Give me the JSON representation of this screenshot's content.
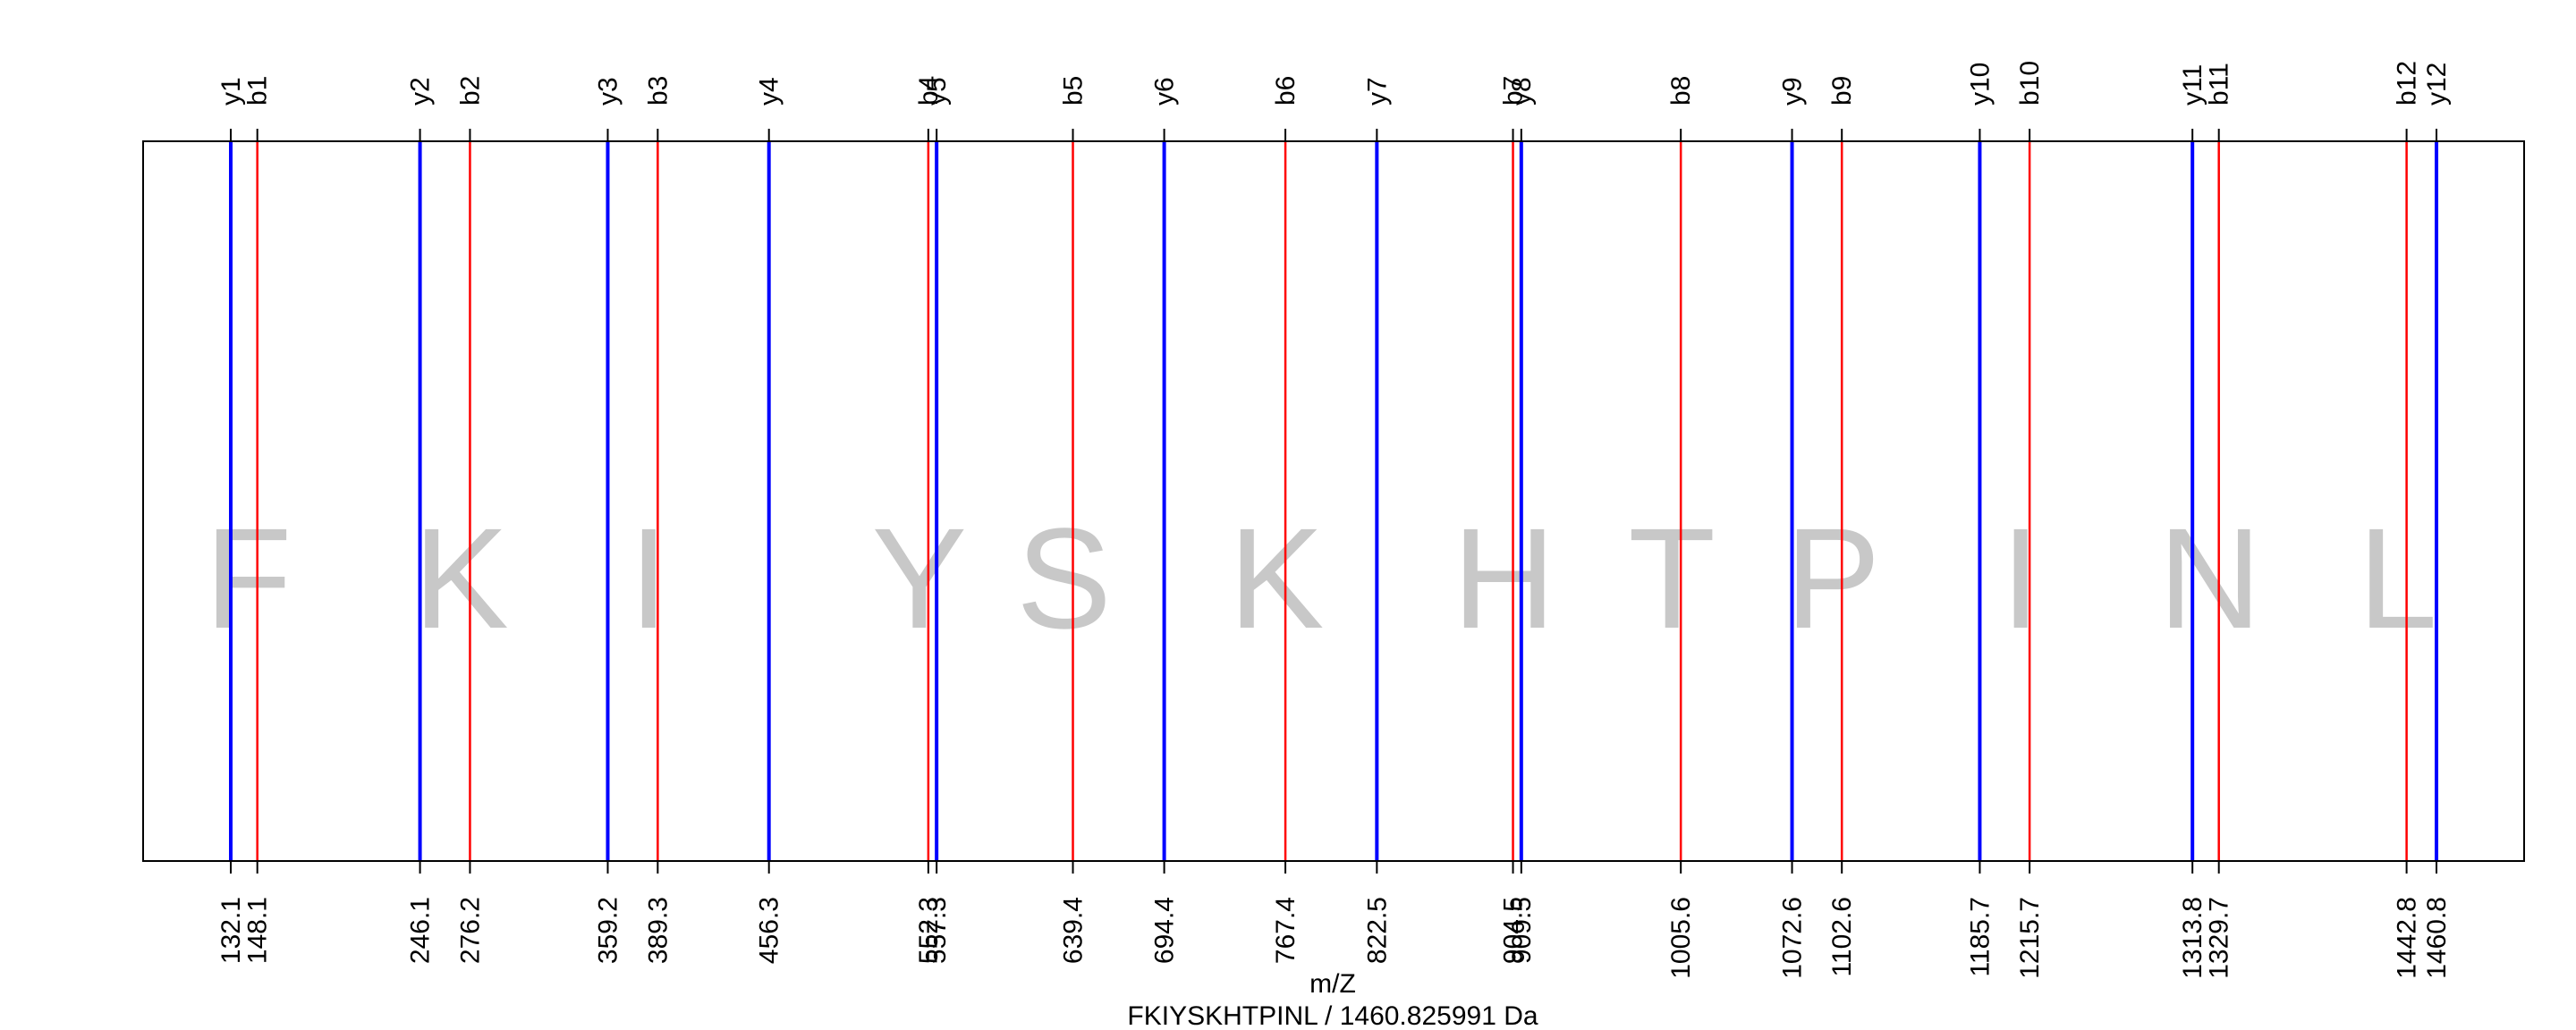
{
  "chart_data": {
    "type": "spectrum-annotation",
    "xlabel": "m/Z",
    "subtitle": "FKIYSKHTPINL / 1460.825991 Da",
    "sequence": [
      "F",
      "K",
      "I",
      "Y",
      "S",
      "K",
      "H",
      "T",
      "P",
      "I",
      "N",
      "L"
    ],
    "ions": [
      {
        "label": "y1",
        "mz": 132.1,
        "tick": "132.1",
        "series": "y"
      },
      {
        "label": "b1",
        "mz": 148.1,
        "tick": "148.1",
        "series": "b"
      },
      {
        "label": "y2",
        "mz": 246.1,
        "tick": "246.1",
        "series": "y"
      },
      {
        "label": "b2",
        "mz": 276.2,
        "tick": "276.2",
        "series": "b"
      },
      {
        "label": "y3",
        "mz": 359.2,
        "tick": "359.2",
        "series": "y"
      },
      {
        "label": "b3",
        "mz": 389.3,
        "tick": "389.3",
        "series": "b"
      },
      {
        "label": "y4",
        "mz": 456.3,
        "tick": "456.3",
        "series": "y"
      },
      {
        "label": "b4",
        "mz": 552.3,
        "tick": "552.3",
        "series": "b"
      },
      {
        "label": "y5",
        "mz": 557.3,
        "tick": "557.3",
        "series": "y"
      },
      {
        "label": "b5",
        "mz": 639.4,
        "tick": "639.4",
        "series": "b"
      },
      {
        "label": "y6",
        "mz": 694.4,
        "tick": "694.4",
        "series": "y"
      },
      {
        "label": "b6",
        "mz": 767.4,
        "tick": "767.4",
        "series": "b"
      },
      {
        "label": "y7",
        "mz": 822.5,
        "tick": "822.5",
        "series": "y"
      },
      {
        "label": "b7",
        "mz": 904.5,
        "tick": "904.5",
        "series": "b"
      },
      {
        "label": "y8",
        "mz": 909.5,
        "tick": "909.5",
        "series": "y"
      },
      {
        "label": "b8",
        "mz": 1005.6,
        "tick": "1005.6",
        "series": "b"
      },
      {
        "label": "y9",
        "mz": 1072.6,
        "tick": "1072.6",
        "series": "y"
      },
      {
        "label": "b9",
        "mz": 1102.6,
        "tick": "1102.6",
        "series": "b"
      },
      {
        "label": "y10",
        "mz": 1185.7,
        "tick": "1185.7",
        "series": "y"
      },
      {
        "label": "b10",
        "mz": 1215.7,
        "tick": "1215.7",
        "series": "b"
      },
      {
        "label": "y11",
        "mz": 1313.8,
        "tick": "1313.8",
        "series": "y"
      },
      {
        "label": "b11",
        "mz": 1329.7,
        "tick": "1329.7",
        "series": "b"
      },
      {
        "label": "b12",
        "mz": 1442.8,
        "tick": "1442.8",
        "series": "b"
      },
      {
        "label": "y12",
        "mz": 1460.8,
        "tick": "1460.8",
        "series": "y"
      }
    ],
    "xlim": [
      79.3,
      1513.6
    ],
    "colors": {
      "b": "#ff0000",
      "y": "#0000ff",
      "letters": "#c8c8c8",
      "frame": "#000000"
    },
    "grid": false
  }
}
